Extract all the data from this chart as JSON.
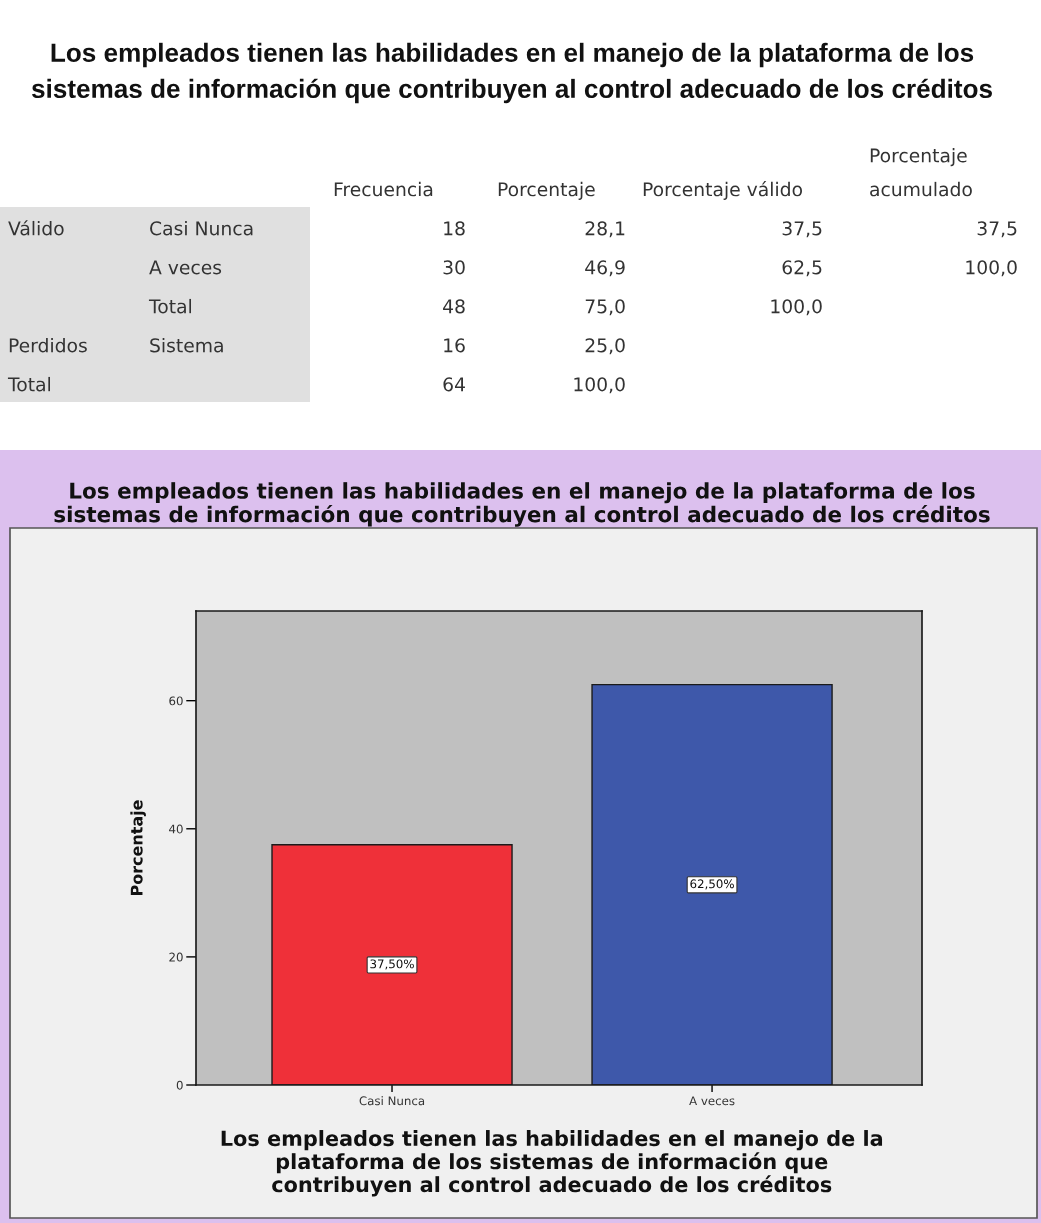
{
  "chart_data": [
    {
      "type": "other",
      "title": "Los empleados tienen las habilidades en el manejo de la plataforma de los\nsistemas de información que contribuyen al control adecuado de los créditos",
      "categories": [
        "Frecuencia",
        "Porcentaje",
        "Porcentaje válido",
        "Porcentaje\nacumulado"
      ],
      "y_categories": [
        "Válido",
        null,
        null,
        "Perdidos",
        "Total"
      ],
      "y2_categories": [
        "Casi Nunca",
        "A veces",
        "Total",
        "Sistema",
        null
      ],
      "cell_labels": [
        [
          "18",
          "28,1",
          "37,5",
          "37,5"
        ],
        [
          "30",
          "46,9",
          "62,5",
          "100,0"
        ],
        [
          "48",
          "75,0",
          "100,0",
          null
        ],
        [
          "16",
          "25,0",
          null,
          null
        ],
        [
          "64",
          "100,0",
          null,
          null
        ]
      ]
    },
    {
      "type": "bar",
      "title": "Los empleados tienen las habilidades en el manejo de la plataforma de los\nsistemas de información que contribuyen al control adecuado de los créditos",
      "categories": [
        "Casi Nunca",
        "A veces"
      ],
      "values": [
        37.5,
        62.5
      ],
      "colors": [
        "#ef3039",
        "#3e58aa"
      ],
      "value_labels": [
        "37,50%",
        "62,50%"
      ],
      "ylim": [
        0,
        74
      ],
      "yticks": [
        0,
        20,
        40,
        60
      ],
      "ylabel": "Porcentaje",
      "xlabel": "Los empleados tienen las habilidades en el manejo de la\nplataforma de los sistemas de información que\ncontribuyen al control adecuado de los créditos"
    }
  ]
}
